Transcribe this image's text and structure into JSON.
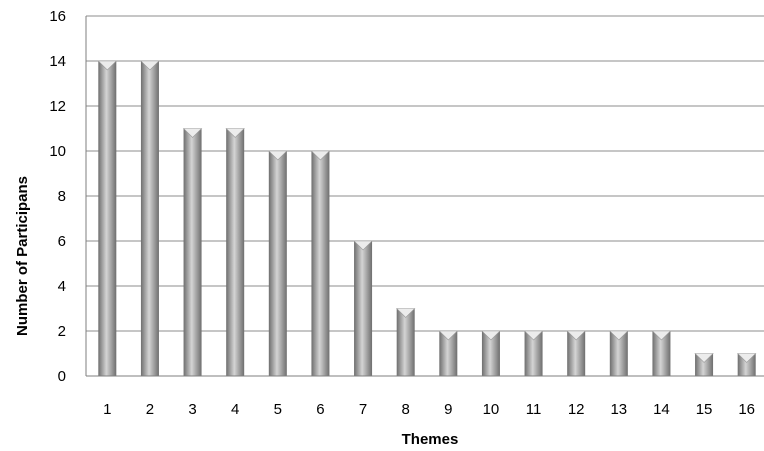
{
  "chart_data": {
    "type": "bar",
    "title": "",
    "xlabel": "Themes",
    "ylabel": "Number of Participans",
    "categories": [
      "1",
      "2",
      "3",
      "4",
      "5",
      "6",
      "7",
      "8",
      "9",
      "10",
      "11",
      "12",
      "13",
      "14",
      "15",
      "16"
    ],
    "values": [
      14,
      14,
      11,
      11,
      10,
      10,
      6,
      3,
      2,
      2,
      2,
      2,
      2,
      2,
      1,
      1
    ],
    "ylim": [
      0,
      16
    ],
    "yticks": [
      "0",
      "2",
      "4",
      "6",
      "8",
      "10",
      "12",
      "14",
      "16"
    ],
    "grid": true,
    "legend": "none",
    "colors": {
      "bar_dark": "#6e6e6e",
      "bar_light": "#d4d4d4",
      "bar_top": "#ececec",
      "grid": "#8c8c8c",
      "axis": "#7f7f7f"
    }
  }
}
